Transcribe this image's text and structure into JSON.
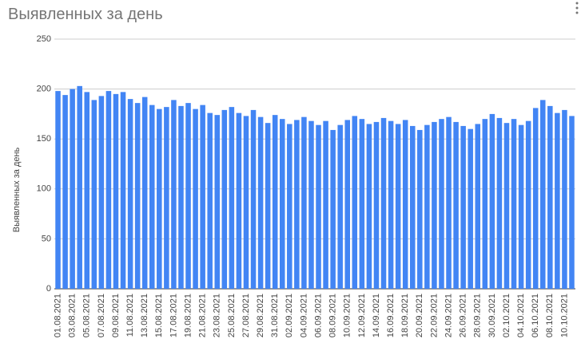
{
  "chart_data": {
    "type": "bar",
    "title": "Выявленных за день",
    "y_label": "Выявленных за день",
    "categories": [
      "01.08.2021",
      null,
      "03.08.2021",
      null,
      "05.08.2021",
      null,
      "07.08.2021",
      null,
      "09.08.2021",
      null,
      "11.08.2021",
      null,
      "13.08.2021",
      null,
      "15.08.2021",
      null,
      "17.08.2021",
      null,
      "19.08.2021",
      null,
      "21.08.2021",
      null,
      "23.08.2021",
      null,
      "25.08.2021",
      null,
      "27.08.2021",
      null,
      "29.08.2021",
      null,
      "31.08.2021",
      null,
      "02.09.2021",
      null,
      "04.09.2021",
      null,
      "06.09.2021",
      null,
      "08.09.2021",
      null,
      "10.09.2021",
      null,
      "12.09.2021",
      null,
      "14.09.2021",
      null,
      "16.09.2021",
      null,
      "18.09.2021",
      null,
      "20.09.2021",
      null,
      "22.09.2021",
      null,
      "24.09.2021",
      null,
      "26.09.2021",
      null,
      "28.09.2021",
      null,
      "30.09.2021",
      null,
      "02.10.2021",
      null,
      "04.10.2021",
      null,
      "06.10.2021",
      null,
      "08.10.2021",
      null,
      "10.10.2021",
      null
    ],
    "values": [
      198,
      194,
      200,
      203,
      197,
      189,
      193,
      198,
      195,
      197,
      190,
      186,
      192,
      184,
      180,
      182,
      189,
      183,
      186,
      180,
      184,
      176,
      174,
      179,
      182,
      176,
      173,
      179,
      172,
      166,
      174,
      170,
      165,
      169,
      172,
      168,
      164,
      168,
      159,
      164,
      169,
      173,
      170,
      165,
      167,
      171,
      168,
      165,
      169,
      163,
      159,
      164,
      167,
      170,
      172,
      167,
      163,
      160,
      165,
      170,
      175,
      171,
      166,
      170,
      164,
      168,
      181,
      189,
      183,
      176,
      179,
      173
    ],
    "color": "#4285f4",
    "ylim": [
      0,
      250
    ],
    "yticks": [
      0,
      50,
      100,
      150,
      200,
      250
    ],
    "grid": true
  }
}
